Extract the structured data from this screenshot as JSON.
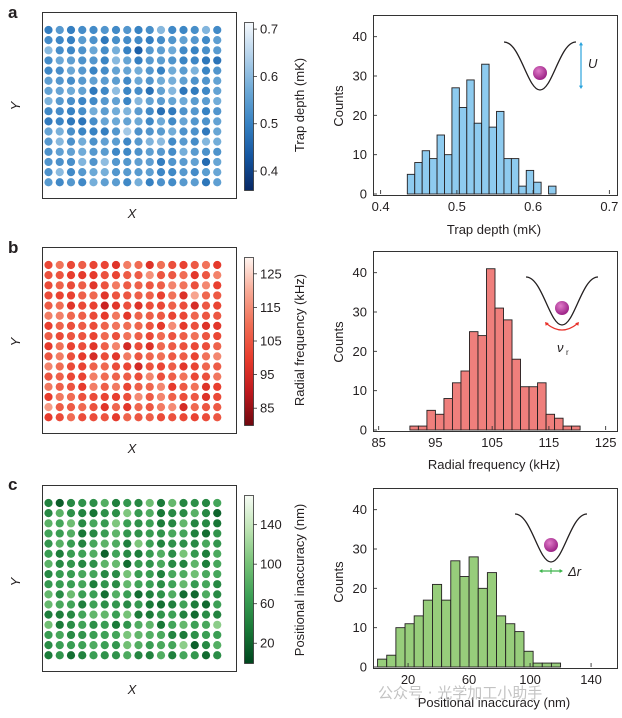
{
  "watermark": "公众号 · 光学加工小助手",
  "colors": {
    "blue_fill": "#8ecbef",
    "red_fill": "#ef7f7c",
    "green_fill": "#97cd7b",
    "inset_atom": "#a0288a",
    "arrow_blue": "#2aa3dc",
    "arrow_red": "#e8312a",
    "arrow_green": "#3cb44b"
  },
  "chart_data": [
    {
      "panel": "a",
      "type": "heatmap",
      "title": "",
      "xlabel": "X",
      "ylabel": "Y",
      "grid_size": [
        16,
        16
      ],
      "colormap": "Blues_r",
      "colorbar": {
        "label": "Trap depth (mK)",
        "ticks": [
          0.4,
          0.5,
          0.6,
          0.7
        ],
        "tick_labels": [
          "0.4",
          "0.5",
          "0.6",
          "0.7"
        ],
        "range": [
          0.36,
          0.715
        ]
      },
      "seed": 11,
      "value_range": [
        0.44,
        0.63
      ]
    },
    {
      "panel": "a",
      "type": "bar",
      "title": "",
      "xlabel": "Trap depth (mK)",
      "ylabel": "Counts",
      "xlim": [
        0.39,
        0.71
      ],
      "ylim": [
        0,
        45
      ],
      "xticks": [
        0.4,
        0.5,
        0.6,
        0.7
      ],
      "xtick_labels": [
        "0.4",
        "0.5",
        "0.6",
        "0.7"
      ],
      "yticks": [
        0,
        10,
        20,
        30,
        40
      ],
      "ytick_labels": [
        "0",
        "10",
        "20",
        "30",
        "40"
      ],
      "bin_start": 0.435,
      "bin_width": 0.00975,
      "values": [
        5,
        8,
        11,
        9,
        15,
        10,
        27,
        22,
        29,
        18,
        33,
        17,
        21,
        9,
        9,
        2,
        6,
        3,
        0,
        2
      ],
      "inset_label": "U"
    },
    {
      "panel": "b",
      "type": "heatmap",
      "title": "",
      "xlabel": "X",
      "ylabel": "Y",
      "grid_size": [
        16,
        16
      ],
      "colormap": "Reds_r",
      "colorbar": {
        "label": "Radial frequency (kHz)",
        "ticks": [
          85,
          95,
          105,
          115,
          125
        ],
        "tick_labels": [
          "85",
          "95",
          "105",
          "115",
          "125"
        ],
        "range": [
          80,
          130
        ]
      },
      "seed": 23,
      "value_range": [
        91,
        120
      ]
    },
    {
      "panel": "b",
      "type": "bar",
      "title": "",
      "xlabel": "Radial frequency (kHz)",
      "ylabel": "Counts",
      "xlim": [
        84,
        127
      ],
      "ylim": [
        0,
        45
      ],
      "xticks": [
        85,
        95,
        105,
        115,
        125
      ],
      "xtick_labels": [
        "85",
        "95",
        "105",
        "115",
        "125"
      ],
      "yticks": [
        0,
        10,
        20,
        30,
        40
      ],
      "ytick_labels": [
        "0",
        "10",
        "20",
        "30",
        "40"
      ],
      "bin_start": 90.5,
      "bin_width": 1.5,
      "values": [
        1,
        1,
        5,
        4,
        8,
        12,
        15,
        25,
        24,
        41,
        31,
        28,
        18,
        11,
        11,
        12,
        4,
        3,
        1,
        1
      ],
      "inset_label": "ν",
      "inset_subscript": "r"
    },
    {
      "panel": "c",
      "type": "heatmap",
      "title": "",
      "xlabel": "X",
      "ylabel": "Y",
      "grid_size": [
        16,
        16
      ],
      "colormap": "Greens_r",
      "colorbar": {
        "label": "Positional inaccuracy (nm)",
        "ticks": [
          20,
          60,
          100,
          140
        ],
        "tick_labels": [
          "20",
          "60",
          "100",
          "140"
        ],
        "range": [
          0,
          170
        ]
      },
      "seed": 37,
      "value_range": [
        2,
        120
      ]
    },
    {
      "panel": "c",
      "type": "bar",
      "title": "",
      "xlabel": "Positional inaccuracy (nm)",
      "ylabel": "Counts",
      "xlim": [
        -3,
        157
      ],
      "ylim": [
        0,
        45
      ],
      "xticks": [
        20,
        60,
        100,
        140
      ],
      "xtick_labels": [
        "20",
        "60",
        "100",
        "140"
      ],
      "yticks": [
        0,
        10,
        20,
        30,
        40
      ],
      "ytick_labels": [
        "0",
        "10",
        "20",
        "30",
        "40"
      ],
      "bin_start": 0,
      "bin_width": 6,
      "values": [
        2,
        3,
        10,
        11,
        13,
        17,
        21,
        17,
        27,
        23,
        28,
        20,
        24,
        13,
        11,
        9,
        4,
        1,
        1,
        1
      ],
      "inset_label": "Δr"
    }
  ],
  "panel_labels": [
    "a",
    "b",
    "c"
  ]
}
